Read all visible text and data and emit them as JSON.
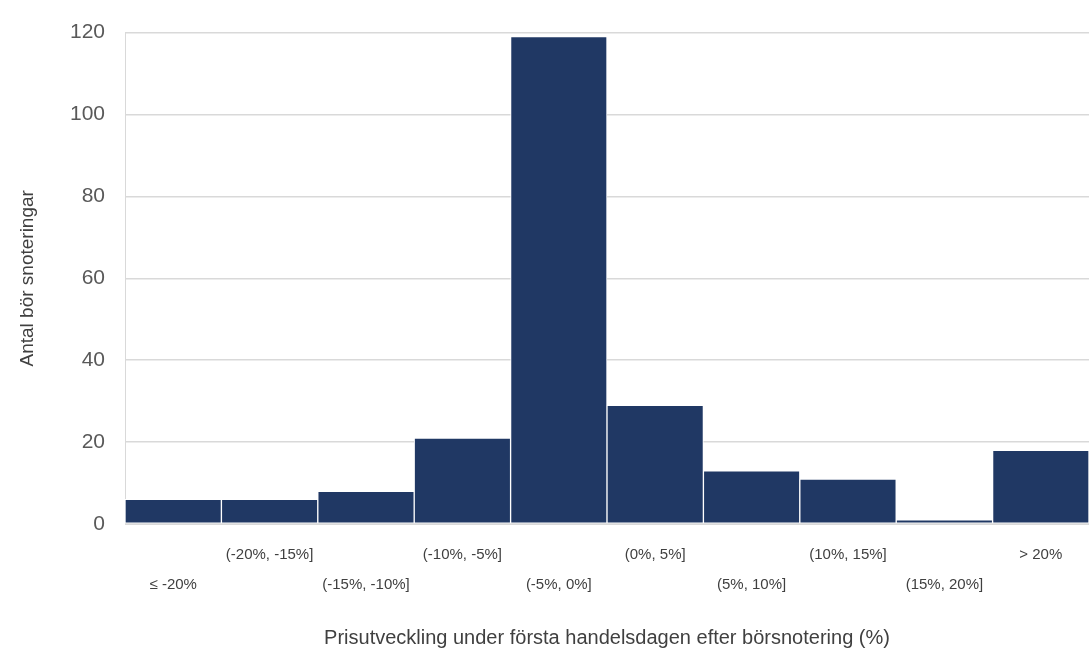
{
  "chart_data": {
    "type": "bar",
    "xlabel": "Prisutveckling under första handelsdagen efter börsnotering (%)",
    "ylabel": "Antal bör snoteringar",
    "categories": [
      "≤ -20%",
      "(-20%, -15%]",
      "(-15%, -10%]",
      "(-10%, -5%]",
      "(-5%, 0%]",
      "(0%, 5%]",
      "(5%, 10%]",
      "(10%, 15%]",
      "(15%, 20%]",
      "> 20%"
    ],
    "values": [
      6,
      6,
      8,
      21,
      119,
      29,
      13,
      11,
      1,
      18
    ],
    "color": "#203864",
    "ylim": [
      0,
      120
    ],
    "yticks": [
      0,
      20,
      40,
      60,
      80,
      100,
      120
    ],
    "grid": "y"
  }
}
